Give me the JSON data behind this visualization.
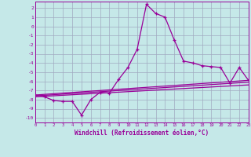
{
  "xlabel": "Windchill (Refroidissement éolien,°C)",
  "xlim": [
    0,
    23
  ],
  "ylim": [
    -10.5,
    2.7
  ],
  "bg_color": "#c5e8e8",
  "grid_color": "#a0aac0",
  "line_color": "#990099",
  "x_ticks": [
    0,
    1,
    2,
    3,
    4,
    5,
    6,
    7,
    8,
    9,
    10,
    11,
    12,
    13,
    14,
    15,
    16,
    17,
    18,
    19,
    20,
    21,
    22,
    23
  ],
  "y_ticks": [
    -10,
    -9,
    -8,
    -7,
    -6,
    -5,
    -4,
    -3,
    -2,
    -1,
    0,
    1,
    2
  ],
  "main_x": [
    0,
    1,
    2,
    3,
    4,
    5,
    6,
    7,
    8,
    9,
    10,
    11,
    12,
    13,
    14,
    15,
    16,
    17,
    18,
    19,
    20,
    21,
    22,
    23
  ],
  "main_y": [
    -7.5,
    -7.7,
    -8.1,
    -8.2,
    -8.2,
    -9.7,
    -8.0,
    -7.2,
    -7.3,
    -5.8,
    -4.5,
    -2.5,
    2.4,
    1.4,
    1.0,
    -1.5,
    -3.8,
    -4.0,
    -4.3,
    -4.4,
    -4.5,
    -6.2,
    -4.5,
    -5.9
  ],
  "trend1_x": [
    0,
    23
  ],
  "trend1_y": [
    -7.5,
    -5.9
  ],
  "trend2_x": [
    0,
    23
  ],
  "trend2_y": [
    -7.6,
    -6.1
  ],
  "trend3_x": [
    0,
    23
  ],
  "trend3_y": [
    -7.7,
    -6.4
  ]
}
